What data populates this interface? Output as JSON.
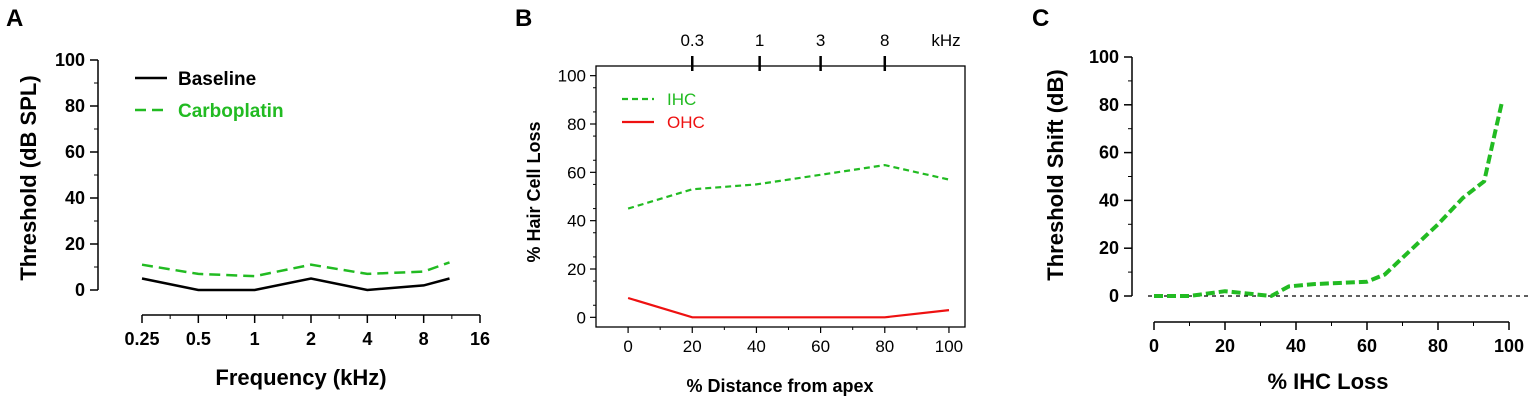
{
  "panels": {
    "a": {
      "letter": "A"
    },
    "b": {
      "letter": "B"
    },
    "c": {
      "letter": "C"
    }
  },
  "chart_data": [
    {
      "type": "line",
      "xlabel": "Frequency (kHz)",
      "ylabel": "Threshold (dB SPL)",
      "x_scale": "log2",
      "x_ticks": [
        0.25,
        0.5,
        1,
        2,
        4,
        8,
        16
      ],
      "x_tick_labels": [
        "0.25",
        "0.5",
        "1",
        "2",
        "4",
        "8",
        "16"
      ],
      "y_ticks": [
        0,
        20,
        40,
        60,
        80,
        100
      ],
      "y_tick_labels": [
        "0",
        "20",
        "40",
        "60",
        "80",
        "100"
      ],
      "xlim": [
        0.25,
        16
      ],
      "ylim": [
        0,
        100
      ],
      "legend_position": "top-left",
      "series": [
        {
          "name": "Baseline",
          "color": "#000000",
          "style": "solid",
          "x": [
            0.25,
            0.5,
            1,
            2,
            4,
            8,
            11
          ],
          "y": [
            5,
            0,
            0,
            5,
            0,
            2,
            5
          ]
        },
        {
          "name": "Carboplatin",
          "color": "#22bb22",
          "style": "dashed",
          "x": [
            0.25,
            0.5,
            1,
            2,
            4,
            8,
            11
          ],
          "y": [
            11,
            7,
            6,
            11,
            7,
            8,
            12
          ]
        }
      ]
    },
    {
      "type": "line",
      "xlabel": "% Distance from apex",
      "ylabel": "% Hair Cell Loss",
      "x_ticks": [
        0,
        20,
        40,
        60,
        80,
        100
      ],
      "x_tick_labels": [
        "0",
        "20",
        "40",
        "60",
        "80",
        "100"
      ],
      "y_ticks": [
        0,
        20,
        40,
        60,
        80,
        100
      ],
      "y_tick_labels": [
        "0",
        "20",
        "40",
        "60",
        "80",
        "100"
      ],
      "xlim": [
        -10,
        105
      ],
      "ylim": [
        -4,
        104
      ],
      "top_axis": {
        "unit_label": "kHz",
        "ticks": [
          {
            "label": "0.3",
            "x": 20
          },
          {
            "label": "1",
            "x": 41
          },
          {
            "label": "3",
            "x": 60
          },
          {
            "label": "8",
            "x": 80
          }
        ]
      },
      "legend_position": "top-left",
      "series": [
        {
          "name": "IHC",
          "color": "#22bb22",
          "style": "dashed",
          "x": [
            0,
            20,
            40,
            60,
            80,
            100
          ],
          "y": [
            45,
            53,
            55,
            59,
            63,
            57
          ]
        },
        {
          "name": "OHC",
          "color": "#ee1111",
          "style": "solid",
          "x": [
            0,
            20,
            40,
            60,
            80,
            100
          ],
          "y": [
            8,
            0,
            0,
            0,
            0,
            3
          ]
        }
      ]
    },
    {
      "type": "line",
      "xlabel": "% IHC Loss",
      "ylabel": "Threshold Shift (dB)",
      "x_ticks": [
        0,
        20,
        40,
        60,
        80,
        100
      ],
      "x_tick_labels": [
        "0",
        "20",
        "40",
        "60",
        "80",
        "100"
      ],
      "y_ticks": [
        0,
        20,
        40,
        60,
        80,
        100
      ],
      "y_tick_labels": [
        "0",
        "20",
        "40",
        "60",
        "80",
        "100"
      ],
      "xlim": [
        -5,
        103
      ],
      "ylim": [
        -10,
        100
      ],
      "reference_line": {
        "y": 0,
        "style": "dotted",
        "color": "#000000"
      },
      "series": [
        {
          "color": "#22bb22",
          "style": "dashed",
          "x": [
            0,
            10,
            20,
            33,
            38,
            45,
            60,
            65,
            70,
            80,
            87,
            93,
            96,
            98
          ],
          "y": [
            0,
            0,
            2,
            0,
            4,
            5,
            6,
            9,
            16,
            30,
            41,
            48,
            68,
            81
          ]
        }
      ]
    }
  ]
}
